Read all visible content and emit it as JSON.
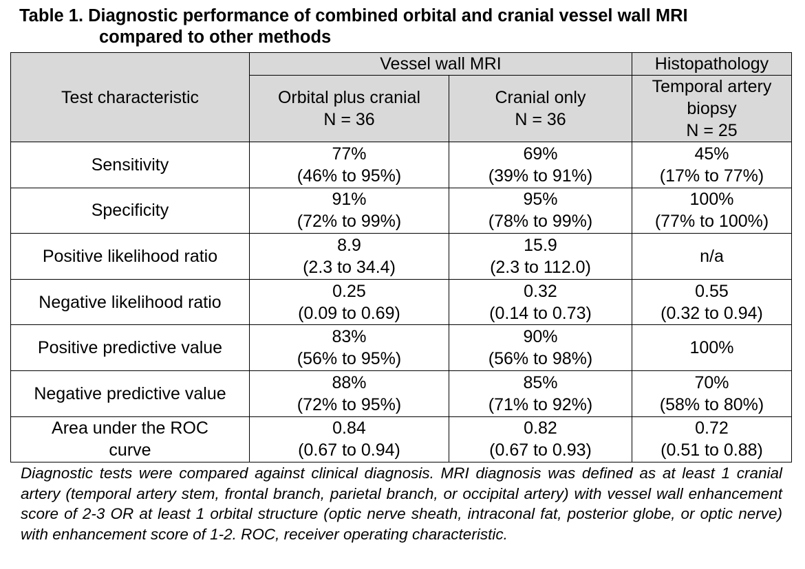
{
  "title": {
    "line1": "Table 1. Diagnostic performance of combined orbital and cranial vessel wall MRI",
    "line2": "compared to other methods"
  },
  "header": {
    "test_characteristic": "Test characteristic",
    "vessel_wall_mri": "Vessel wall MRI",
    "histopathology": "Histopathology",
    "col1": {
      "name": "Orbital plus cranial",
      "n": "N = 36"
    },
    "col2": {
      "name": "Cranial only",
      "n": "N = 36"
    },
    "col3": {
      "name1": "Temporal artery",
      "name2": "biopsy",
      "n": "N = 25"
    }
  },
  "rows": [
    {
      "label": [
        "Sensitivity"
      ],
      "c1": [
        "77%",
        "(46% to 95%)"
      ],
      "c2": [
        "69%",
        "(39% to 91%)"
      ],
      "c3": [
        "45%",
        "(17% to 77%)"
      ]
    },
    {
      "label": [
        "Specificity"
      ],
      "c1": [
        "91%",
        "(72% to 99%)"
      ],
      "c2": [
        "95%",
        "(78% to 99%)"
      ],
      "c3": [
        "100%",
        "(77% to 100%)"
      ]
    },
    {
      "label": [
        "Positive likelihood ratio"
      ],
      "c1": [
        "8.9",
        "(2.3 to 34.4)"
      ],
      "c2": [
        "15.9",
        "(2.3 to 112.0)"
      ],
      "c3": [
        "n/a"
      ]
    },
    {
      "label": [
        "Negative likelihood ratio"
      ],
      "c1": [
        "0.25",
        "(0.09 to 0.69)"
      ],
      "c2": [
        "0.32",
        "(0.14 to 0.73)"
      ],
      "c3": [
        "0.55",
        "(0.32 to 0.94)"
      ]
    },
    {
      "label": [
        "Positive predictive value"
      ],
      "c1": [
        "83%",
        "(56% to 95%)"
      ],
      "c2": [
        "90%",
        "(56% to 98%)"
      ],
      "c3": [
        "100%"
      ]
    },
    {
      "label": [
        "Negative predictive value"
      ],
      "c1": [
        "88%",
        "(72% to 95%)"
      ],
      "c2": [
        "85%",
        "(71% to 92%)"
      ],
      "c3": [
        "70%",
        "(58% to 80%)"
      ]
    },
    {
      "label": [
        "Area under the ROC",
        "curve"
      ],
      "c1": [
        "0.84",
        "(0.67 to 0.94)"
      ],
      "c2": [
        "0.82",
        "(0.67 to 0.93)"
      ],
      "c3": [
        "0.72",
        "(0.51 to 0.88)"
      ]
    }
  ],
  "footnote": "Diagnostic tests were compared against clinical diagnosis. MRI diagnosis was defined as at least 1 cranial artery (temporal artery stem, frontal branch, parietal branch, or occipital artery) with vessel wall enhancement score of 2-3 OR at least 1 orbital structure (optic nerve sheath, intraconal fat, posterior globe, or optic nerve) with enhancement score of 1-2. ROC, receiver operating characteristic."
}
